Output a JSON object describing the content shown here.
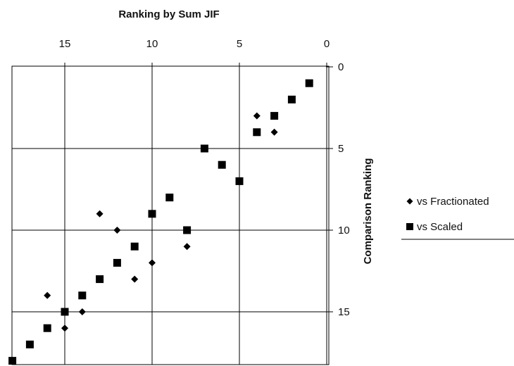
{
  "chart_data": {
    "type": "scatter",
    "title": "",
    "xlabel": "Ranking by Sum JIF",
    "ylabel": "Comparison Ranking",
    "x_axis_position": "top",
    "y_axis_position": "right",
    "x_reversed": true,
    "y_reversed": true,
    "xlim": [
      0,
      18
    ],
    "ylim": [
      0,
      18
    ],
    "x_ticks": [
      15,
      10,
      5,
      0
    ],
    "y_ticks": [
      0,
      5,
      10,
      15
    ],
    "grid": true,
    "legend_position": "right",
    "series": [
      {
        "name": "vs Fractionated",
        "marker": "diamond",
        "color": "#000000",
        "points": [
          [
            1,
            1
          ],
          [
            2,
            2
          ],
          [
            3,
            3
          ],
          [
            4,
            3
          ],
          [
            3,
            4
          ],
          [
            4,
            4
          ],
          [
            7,
            5
          ],
          [
            6,
            6
          ],
          [
            5,
            7
          ],
          [
            9,
            8
          ],
          [
            13,
            9
          ],
          [
            10,
            9
          ],
          [
            12,
            10
          ],
          [
            8,
            10
          ],
          [
            8,
            11
          ],
          [
            10,
            12
          ],
          [
            11,
            13
          ],
          [
            16,
            14
          ],
          [
            14,
            14
          ],
          [
            15,
            15
          ],
          [
            14,
            15
          ],
          [
            15,
            16
          ],
          [
            17,
            17
          ],
          [
            18,
            18
          ]
        ]
      },
      {
        "name": "vs Scaled",
        "marker": "square",
        "color": "#000000",
        "points": [
          [
            1,
            1
          ],
          [
            2,
            2
          ],
          [
            3,
            3
          ],
          [
            4,
            4
          ],
          [
            7,
            5
          ],
          [
            6,
            6
          ],
          [
            5,
            7
          ],
          [
            9,
            8
          ],
          [
            10,
            9
          ],
          [
            8,
            10
          ],
          [
            11,
            11
          ],
          [
            12,
            12
          ],
          [
            13,
            13
          ],
          [
            14,
            14
          ],
          [
            15,
            15
          ],
          [
            16,
            16
          ],
          [
            17,
            17
          ],
          [
            18,
            18
          ]
        ]
      }
    ]
  }
}
